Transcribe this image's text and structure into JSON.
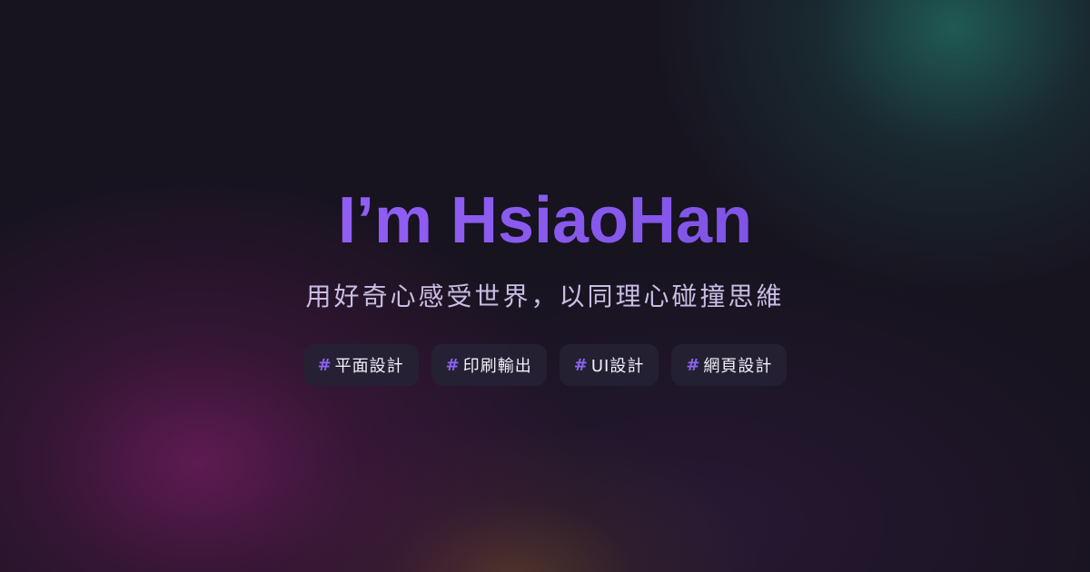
{
  "hero": {
    "title": "I’m HsiaoHan",
    "subtitle": "用好奇心感受世界，以同理心碰撞思維",
    "tags": [
      {
        "hash": "#",
        "label": "平面設計"
      },
      {
        "hash": "#",
        "label": "印刷輸出"
      },
      {
        "hash": "#",
        "label": "UI設計"
      },
      {
        "hash": "#",
        "label": "網頁設計"
      }
    ]
  },
  "colors": {
    "background": "#17131f",
    "title_purple": "#8f5cf0",
    "accent_purple": "#8d63ef",
    "subtitle": "#c9bde3",
    "tag_background": "#262234",
    "tag_text": "#f2f0f8",
    "teal_glow": "#226e64",
    "magenta_glow": "#681c58"
  }
}
